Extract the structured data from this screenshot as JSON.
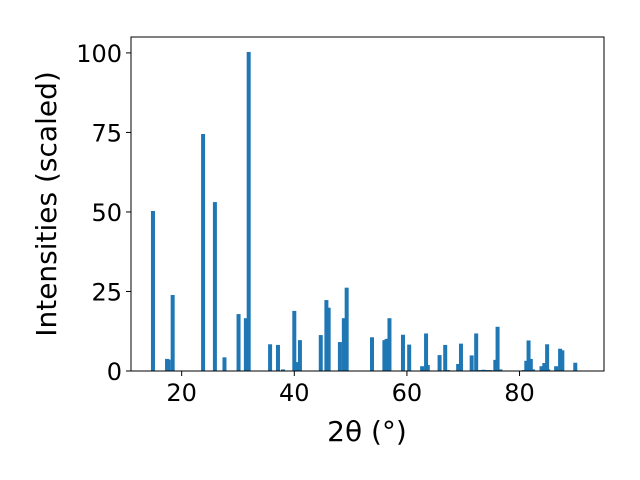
{
  "chart_data": {
    "type": "bar",
    "xlabel": "2θ (°)",
    "ylabel": "Intensities (scaled)",
    "xlim": [
      11,
      95
    ],
    "ylim": [
      0,
      105
    ],
    "xticks": [
      20,
      40,
      60,
      80
    ],
    "yticks": [
      0,
      25,
      50,
      75,
      100
    ],
    "bar_color": "#1f77b4",
    "grid": false,
    "x": [
      14.9,
      17.4,
      17.7,
      18.4,
      23.8,
      25.9,
      27.6,
      30.1,
      31.4,
      31.9,
      35.7,
      37.1,
      38.0,
      40.0,
      40.4,
      41.0,
      44.7,
      45.7,
      46.1,
      48.1,
      48.8,
      49.3,
      53.8,
      56.0,
      56.4,
      56.9,
      59.3,
      60.4,
      62.7,
      63.4,
      63.7,
      65.8,
      66.8,
      67.3,
      69.1,
      69.6,
      71.5,
      72.3,
      72.9,
      73.6,
      74.2,
      74.8,
      75.7,
      76.1,
      76.6,
      80.8,
      81.2,
      81.6,
      82.0,
      82.4,
      83.9,
      84.4,
      84.9,
      85.1,
      86.5,
      87.2,
      87.6,
      89.9
    ],
    "values": [
      50.3,
      3.8,
      3.6,
      23.9,
      74.5,
      53.1,
      4.3,
      17.9,
      16.6,
      100.3,
      8.4,
      8.2,
      0.5,
      18.9,
      2.8,
      9.7,
      11.3,
      22.3,
      19.9,
      9.1,
      16.6,
      26.2,
      10.6,
      9.7,
      10.1,
      16.6,
      11.4,
      8.3,
      1.5,
      11.8,
      1.9,
      5.0,
      8.2,
      0.3,
      2.2,
      8.6,
      4.9,
      11.8,
      0.3,
      0.4,
      0.3,
      0.3,
      3.5,
      13.9,
      0.5,
      0.3,
      3.2,
      9.6,
      3.8,
      0.5,
      1.5,
      2.5,
      8.4,
      0.5,
      1.5,
      7.0,
      6.5,
      2.6
    ]
  }
}
